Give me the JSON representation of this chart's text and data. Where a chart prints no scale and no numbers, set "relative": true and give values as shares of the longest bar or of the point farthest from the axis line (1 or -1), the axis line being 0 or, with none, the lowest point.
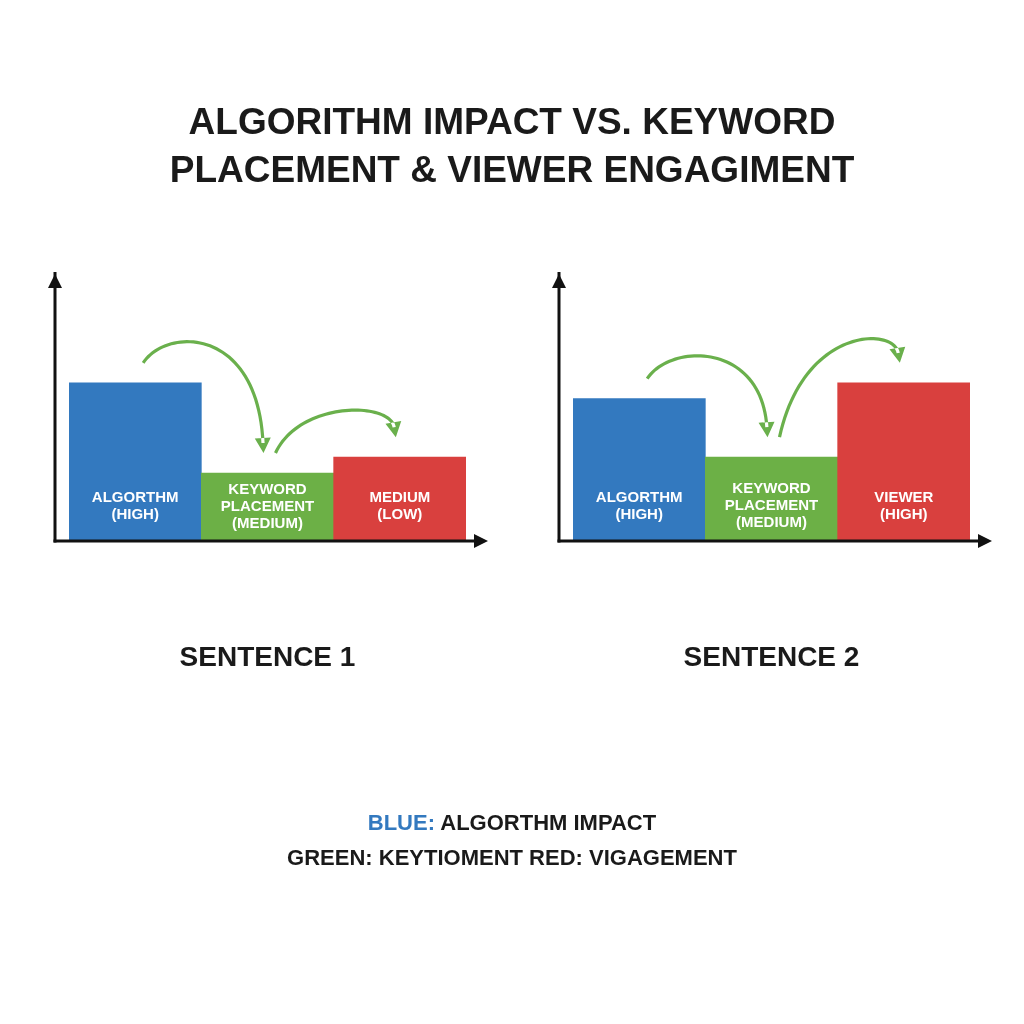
{
  "chart_data": [
    {
      "type": "bar",
      "title": "ALGORITHM IMPACT VS. KEYWORD PLACEMENT & VIEWER ENGAGIMENT",
      "xlabel": "SENTENCE 1",
      "categories": [
        "ALGORTHM (HIGH)",
        "KEYWORD PLACEMENT (MEDIUM)",
        "MEDIUM (LOW)"
      ],
      "values": [
        1,
        0.43,
        0.53
      ],
      "colors": [
        "#3379bf",
        "#6cb046",
        "#d9403e"
      ],
      "relative": true,
      "annotations": [
        "BLUE: ALGORTHM IMPACT",
        "GREEN: KEYTIOMENT RED: VIGAGEMENT"
      ]
    },
    {
      "type": "bar",
      "xlabel": "SENTENCE 2",
      "categories": [
        "ALGORTHM (HIGH)",
        "KEYWORD PLACEMENT (MEDIUM)",
        "VIEWER (HIGH)"
      ],
      "values": [
        0.9,
        0.53,
        1
      ],
      "colors": [
        "#3379bf",
        "#6cb046",
        "#d9403e"
      ],
      "relative": true
    }
  ]
}
